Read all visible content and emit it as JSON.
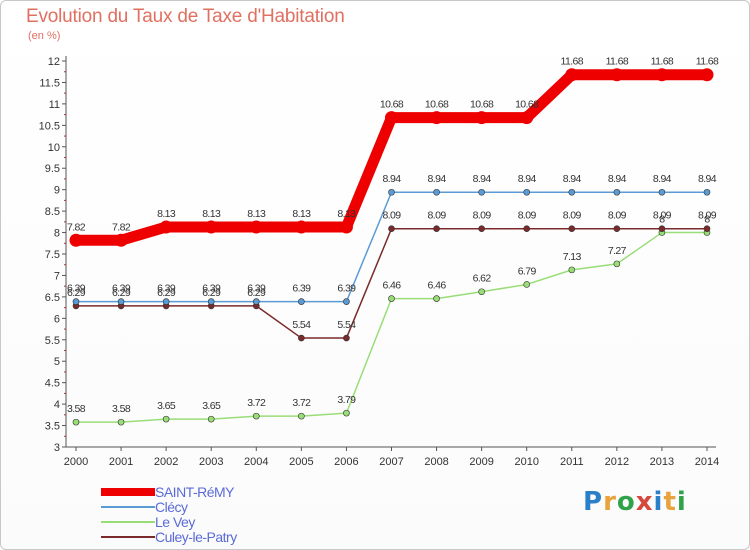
{
  "header": {
    "title": "Evolution du Taux de Taxe d'Habitation",
    "subtitle": "(en %)"
  },
  "logo": {
    "text": "Proxiti",
    "colors": [
      "#2a7fc9",
      "#e8a33c",
      "#2fa24a",
      "#d6483c",
      "#2a7fc9",
      "#e8a33c",
      "#2fa24a"
    ]
  },
  "chart_data": {
    "type": "line",
    "x": [
      "2000",
      "2001",
      "2002",
      "2003",
      "2004",
      "2005",
      "2006",
      "2007",
      "2008",
      "2009",
      "2010",
      "2011",
      "2012",
      "2013",
      "2014"
    ],
    "ylim": [
      3,
      12
    ],
    "yticks": [
      "3",
      "3.5",
      "4",
      "4.5",
      "5",
      "5.5",
      "6",
      "6.5",
      "7",
      "7.5",
      "8",
      "8.5",
      "9",
      "9.5",
      "10",
      "10.5",
      "11",
      "11.5",
      "12"
    ],
    "grid": false,
    "legend_position": "bottom-left",
    "series": [
      {
        "name": "SAINT-RéMY",
        "color": "#ee0000",
        "values": [
          7.82,
          7.82,
          8.13,
          8.13,
          8.13,
          8.13,
          8.13,
          10.68,
          10.68,
          10.68,
          10.68,
          11.68,
          11.68,
          11.68,
          11.68
        ],
        "labels": [
          "7.82",
          "7.82",
          "8.13",
          "8.13",
          "8.13",
          "8.13",
          "8.13",
          "10.68",
          "10.68",
          "10.68",
          "10.68",
          "11.68",
          "11.68",
          "11.68",
          "11.68"
        ]
      },
      {
        "name": "Clécy",
        "color": "#5b9bd5",
        "values": [
          6.39,
          6.39,
          6.39,
          6.39,
          6.39,
          6.39,
          6.39,
          8.94,
          8.94,
          8.94,
          8.94,
          8.94,
          8.94,
          8.94,
          8.94
        ],
        "labels": [
          "6.39",
          "6.39",
          "6.39",
          "6.39",
          "6.39",
          "6.39",
          "6.39",
          "8.94",
          "8.94",
          "8.94",
          "8.94",
          "8.94",
          "8.94",
          "8.94",
          "8.94"
        ]
      },
      {
        "name": "Le Vey",
        "color": "#99dd77",
        "values": [
          3.58,
          3.58,
          3.65,
          3.65,
          3.72,
          3.72,
          3.79,
          6.46,
          6.46,
          6.62,
          6.79,
          7.13,
          7.27,
          8.0,
          8.0
        ],
        "labels": [
          "3.58",
          "3.58",
          "3.65",
          "3.65",
          "3.72",
          "3.72",
          "3.79",
          "6.46",
          "6.46",
          "6.62",
          "6.79",
          "7.13",
          "7.27",
          "8",
          "8"
        ]
      },
      {
        "name": "Culey-le-Patry",
        "color": "#7a2a2a",
        "values": [
          6.29,
          6.29,
          6.29,
          6.29,
          6.29,
          5.54,
          5.54,
          8.09,
          8.09,
          8.09,
          8.09,
          8.09,
          8.09,
          8.09,
          8.09
        ],
        "labels": [
          "6.29",
          "6.29",
          "6.29",
          "6.29",
          "6.29",
          "5.54",
          "5.54",
          "8.09",
          "8.09",
          "8.09",
          "8.09",
          "8.09",
          "8.09",
          "8.09",
          "8.09"
        ]
      }
    ]
  }
}
